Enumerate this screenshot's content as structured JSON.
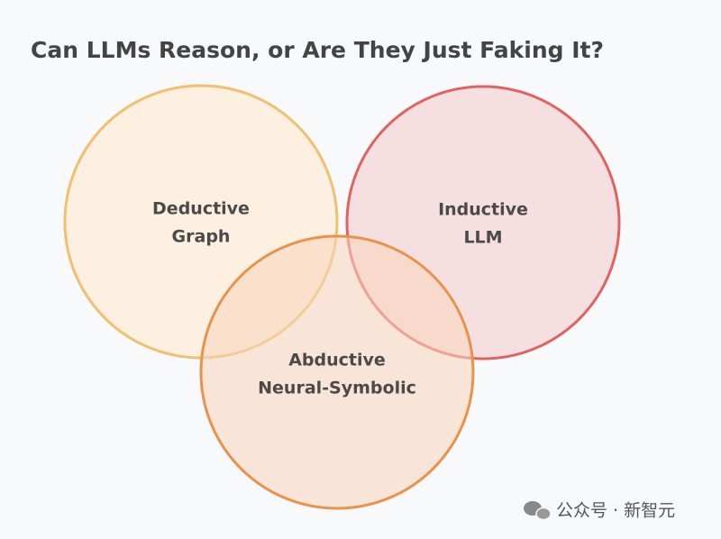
{
  "title": "Can LLMs Reason, or Are They Just Faking It?",
  "nodes": [
    {
      "lines": [
        "Deductive",
        "Graph"
      ]
    },
    {
      "lines": [
        "Inductive",
        "LLM"
      ]
    },
    {
      "lines": [
        "Abductive",
        "Neural-Symbolic"
      ]
    }
  ],
  "watermark": "公众号 · 新智元"
}
